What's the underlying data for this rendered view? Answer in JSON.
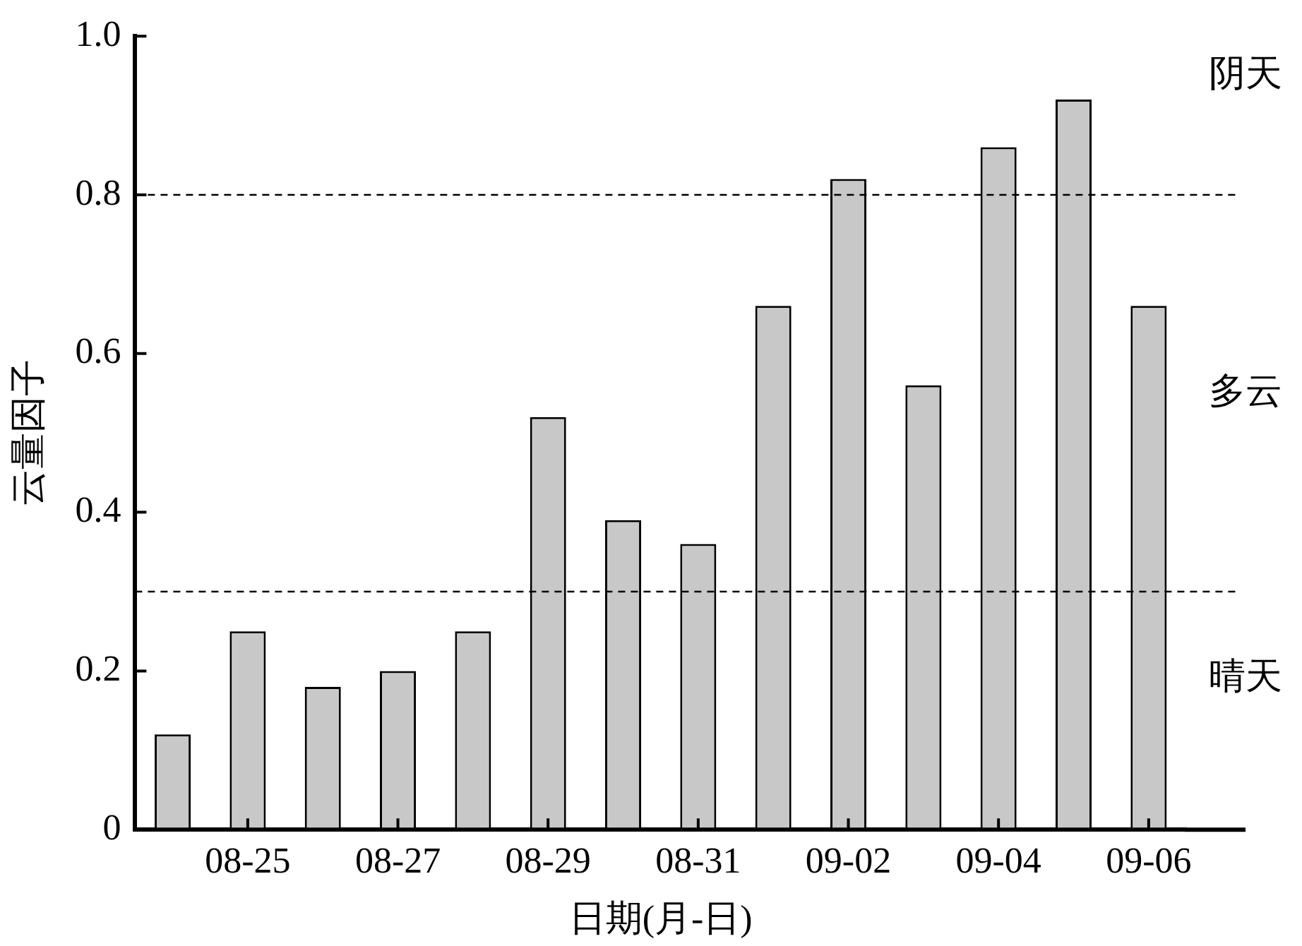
{
  "chart_data": {
    "type": "bar",
    "xlabel": "日期(月-日)",
    "ylabel": "云量因子",
    "categories": [
      null,
      "08-25",
      null,
      "08-27",
      null,
      "08-29",
      null,
      "08-31",
      null,
      "09-02",
      null,
      "09-04",
      null,
      "09-06"
    ],
    "values": [
      0.12,
      0.25,
      0.18,
      0.2,
      0.25,
      0.52,
      0.39,
      0.36,
      0.66,
      0.82,
      0.56,
      0.86,
      0.92,
      0.66
    ],
    "color": "#c8c8c8",
    "ylim": [
      0,
      1
    ],
    "yticks": [
      0,
      0.2,
      0.4,
      0.6,
      0.8,
      {
        "value": 1,
        "label": "1.0"
      }
    ],
    "ref_lines": [
      {
        "axis": "y",
        "value": 0.8,
        "color": "#000000",
        "line_style": "dashed"
      },
      {
        "axis": "y",
        "value": 0.3,
        "color": "#000000",
        "line_style": "dashed"
      }
    ],
    "annotations": [
      "阴天",
      "多云",
      "晴天"
    ],
    "grid": false,
    "legend": false
  }
}
